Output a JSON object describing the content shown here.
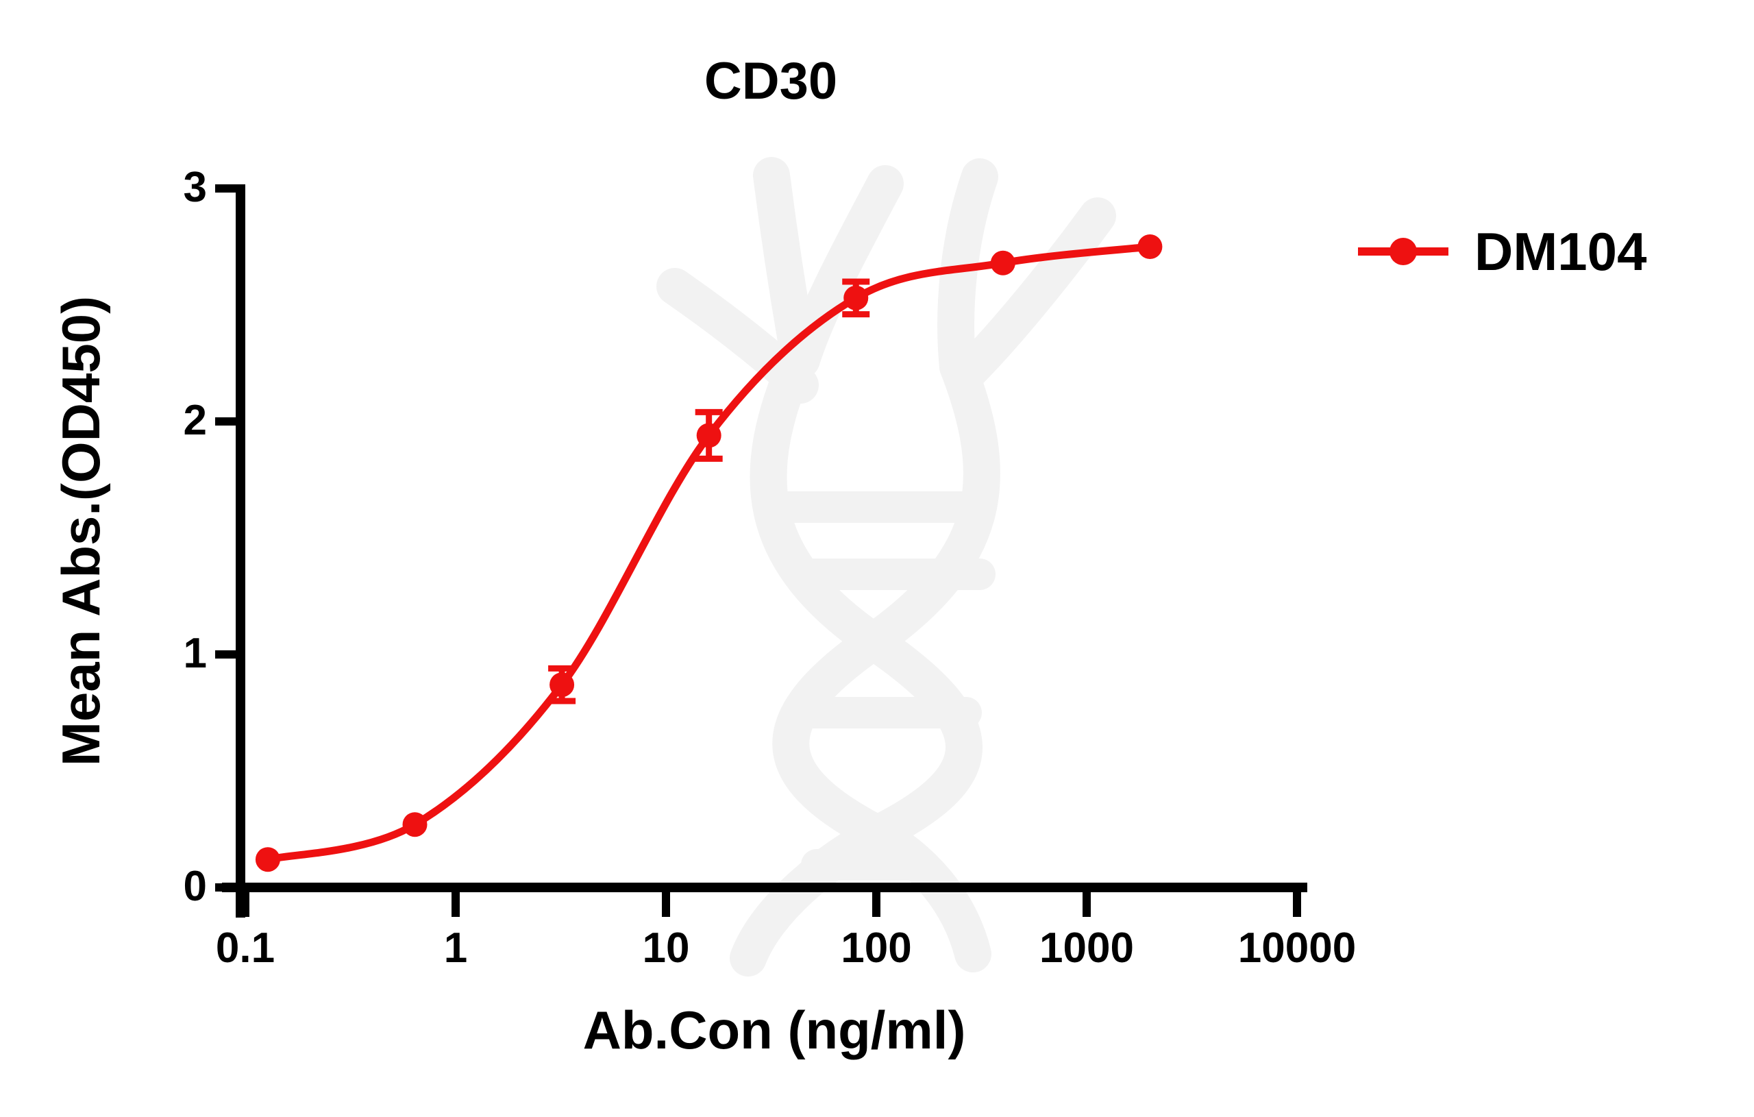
{
  "title": "CD30",
  "watermark_icon": "dna-double-helix",
  "colors": {
    "series": "#EE1111",
    "axis": "#000000",
    "text": "#000000",
    "watermark": "#F2F2F2",
    "background": "#FFFFFF"
  },
  "legend": {
    "label": "DM104"
  },
  "chart_data": {
    "type": "line",
    "title": "CD30",
    "xlabel": "Ab.Con (ng/ml)",
    "ylabel": "Mean Abs.(OD450)",
    "x_scale": "log10",
    "xlim": [
      0.1,
      10000
    ],
    "ylim": [
      0,
      3
    ],
    "x_tick_labels": [
      "0.1",
      "1",
      "10",
      "100",
      "1000",
      "10000"
    ],
    "x_tick_values": [
      0.1,
      1,
      10,
      100,
      1000,
      10000
    ],
    "y_tick_labels": [
      "0",
      "1",
      "2",
      "3"
    ],
    "y_tick_values": [
      0,
      1,
      2,
      3
    ],
    "grid": false,
    "legend_position": "top-right",
    "series": [
      {
        "name": "DM104",
        "color": "#EE1111",
        "marker": "circle",
        "curve": "sigmoid-fit",
        "x": [
          0.128,
          0.64,
          3.2,
          16,
          80,
          400,
          2000
        ],
        "y": [
          0.12,
          0.27,
          0.87,
          1.94,
          2.53,
          2.68,
          2.75
        ],
        "y_err": [
          0,
          0,
          0.07,
          0.1,
          0.07,
          0,
          0
        ]
      }
    ]
  }
}
